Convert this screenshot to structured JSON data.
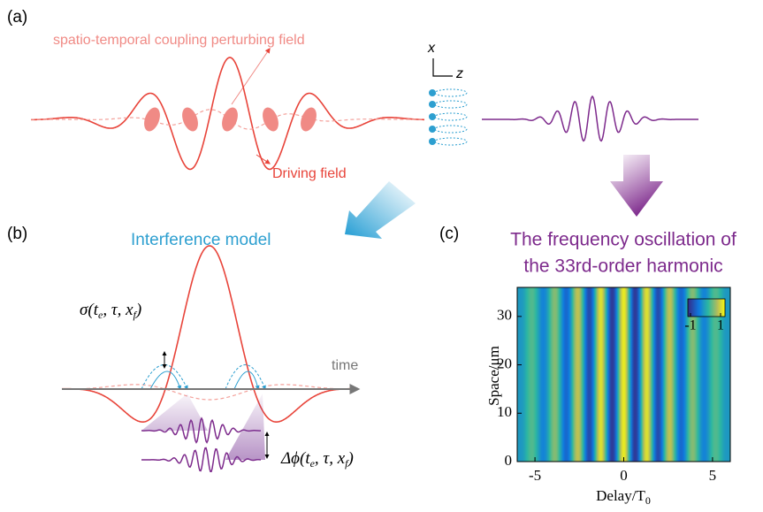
{
  "panel_a": {
    "label": "(a)",
    "perturbing_field": "spatio-temporal coupling perturbing field",
    "driving_field": "Driving field",
    "axis_x": "x",
    "axis_z": "z"
  },
  "panel_b": {
    "label": "(b)",
    "title": "Interference model",
    "time": "time",
    "sigma_label": [
      "σ(t",
      "e",
      ", τ, x",
      "f",
      ")"
    ],
    "delta_label": [
      "Δϕ(t",
      "e",
      ", τ, x",
      "f",
      ")"
    ]
  },
  "panel_c": {
    "label": "(c)",
    "title": [
      "The frequency oscillation of",
      "the 33rd-order harmonic"
    ],
    "xlabel": [
      "Delay/T",
      "0"
    ],
    "ylabel": "Space/μm",
    "xlim": [
      -6,
      6
    ],
    "xticks": [
      -5,
      0,
      5
    ],
    "ylim": [
      0,
      36
    ],
    "yticks": [
      0,
      10,
      20,
      30
    ],
    "colorbar_ticks": [
      -1,
      1
    ]
  }
}
